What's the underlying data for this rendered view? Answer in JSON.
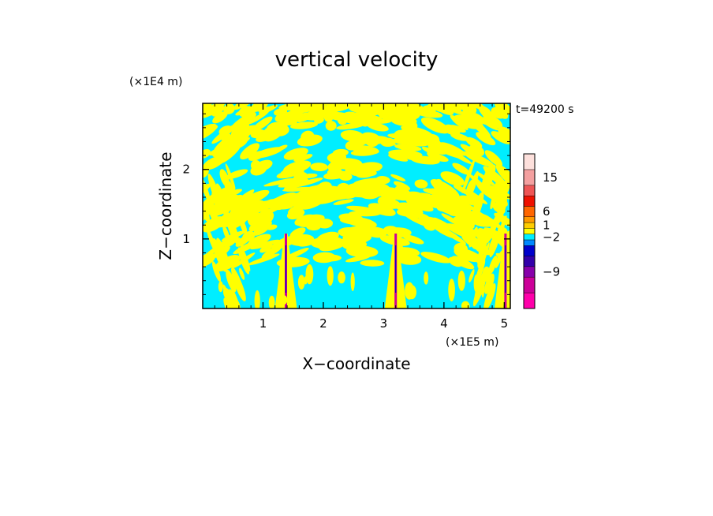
{
  "chart_data": {
    "type": "heatmap",
    "title": "vertical velocity",
    "xlabel": "X−coordinate",
    "ylabel": "Z−coordinate",
    "x_unit": "(×1E5 m)",
    "y_unit": "(×1E4 m)",
    "time_label": "t=49200 s",
    "xlim": [
      0,
      5.1
    ],
    "ylim": [
      0,
      2.95
    ],
    "x_ticks": [
      1,
      2,
      3,
      4,
      5
    ],
    "x_tick_labels": [
      "1",
      "2",
      "3",
      "4",
      "5"
    ],
    "y_ticks": [
      1,
      2
    ],
    "y_tick_labels": [
      "1",
      "2"
    ],
    "background_color": "#00eeff",
    "positive_color": "#ffff00",
    "dominant_values": {
      "background": "−2 to 1 m/s (cyan)",
      "regions": "1 to 3 m/s (yellow)"
    },
    "colorbar": {
      "tick_values": [
        15,
        6,
        1,
        -2,
        -9
      ],
      "tick_labels": [
        "15",
        "6",
        "1",
        "−2",
        "−9"
      ],
      "levels": [
        {
          "color": "#ff00aa"
        },
        {
          "color": "#cc0099"
        },
        {
          "color": "#8800aa"
        },
        {
          "color": "#3300aa"
        },
        {
          "color": "#0000cc"
        },
        {
          "color": "#0088ff"
        },
        {
          "color": "#00eeff"
        },
        {
          "color": "#ffff00"
        },
        {
          "color": "#ffcc00"
        },
        {
          "color": "#ff9900"
        },
        {
          "color": "#ff6600"
        },
        {
          "color": "#ee1100"
        },
        {
          "color": "#ee5555"
        },
        {
          "color": "#f4a0a0"
        },
        {
          "color": "#fde0dc"
        }
      ]
    },
    "plume_columns_x": [
      1.38,
      3.2,
      5.02
    ]
  }
}
